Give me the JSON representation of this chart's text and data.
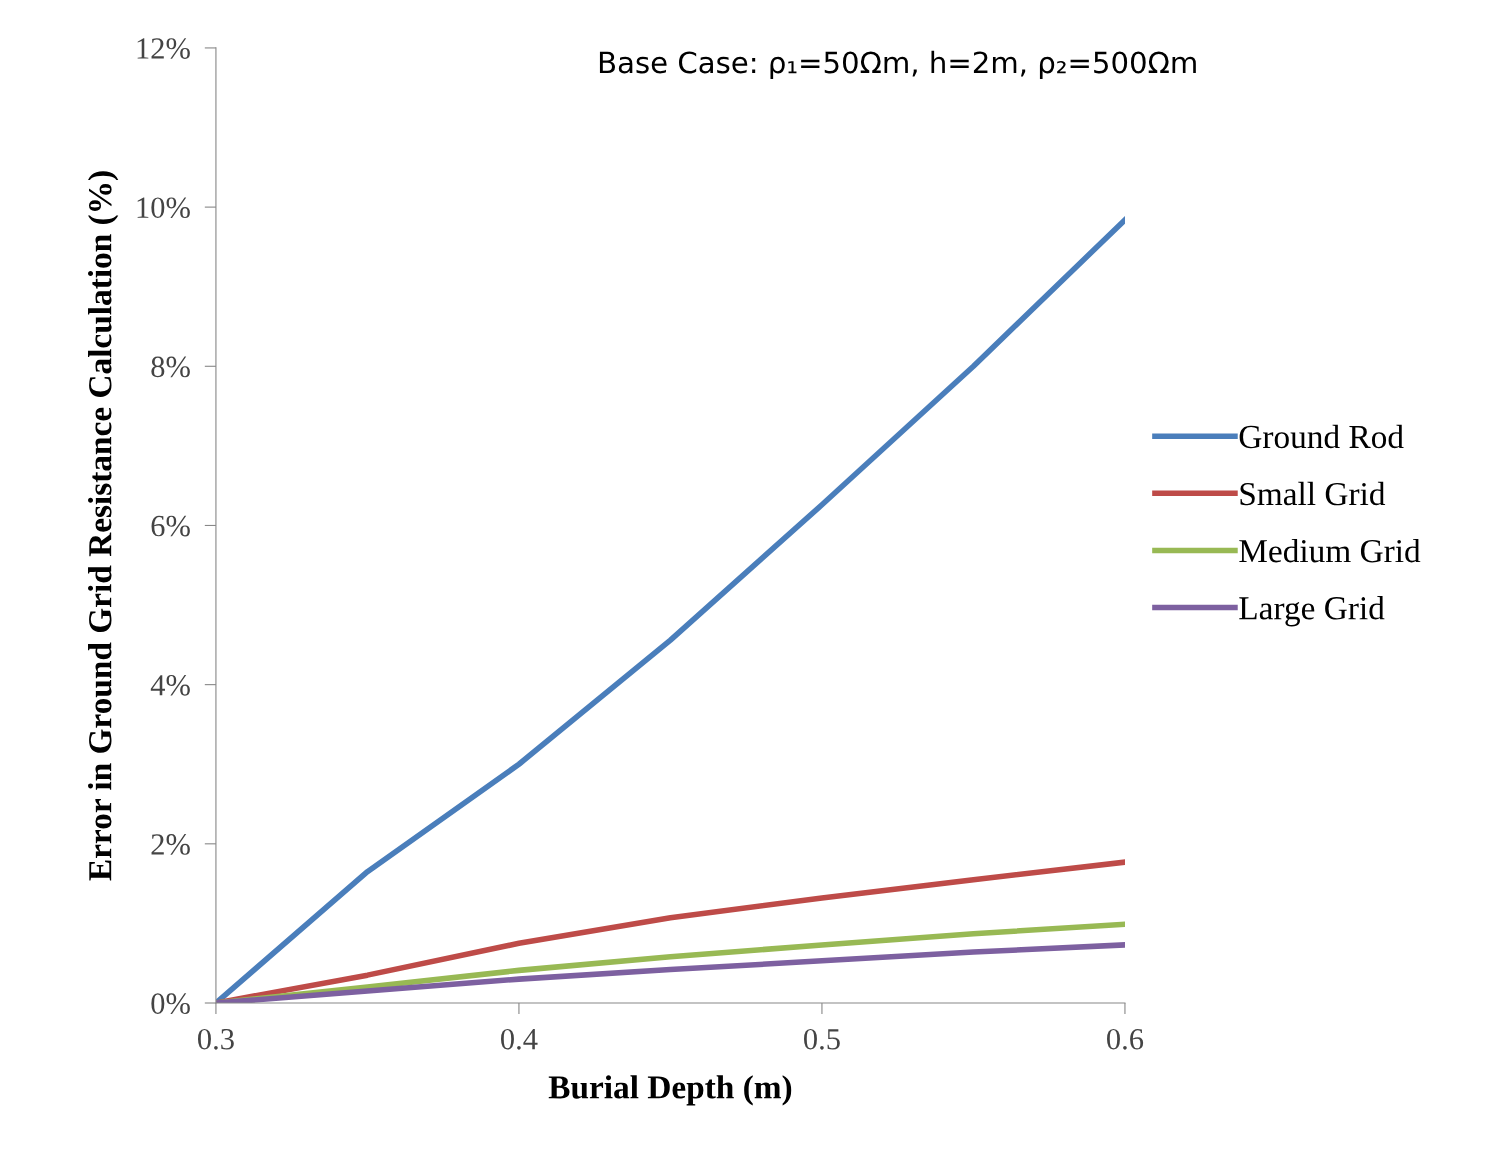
{
  "chart_data": {
    "type": "line",
    "title": "Base Case: ρ₁=50Ωm, h=2m, ρ₂=500Ωm",
    "xlabel": "Burial Depth (m)",
    "ylabel": "Error in Ground Grid Resistance Calculation (%)",
    "x": [
      0.3,
      0.35,
      0.4,
      0.45,
      0.5,
      0.55,
      0.6
    ],
    "series": [
      {
        "name": "Ground Rod",
        "color": "#4a7ebb",
        "values": [
          0,
          1.65,
          3.0,
          4.56,
          6.26,
          8.0,
          9.84
        ]
      },
      {
        "name": "Small Grid",
        "color": "#be4b48",
        "values": [
          0,
          0.35,
          0.75,
          1.07,
          1.32,
          1.55,
          1.77
        ]
      },
      {
        "name": "Medium Grid",
        "color": "#98b954",
        "values": [
          0,
          0.2,
          0.41,
          0.58,
          0.73,
          0.87,
          0.99
        ]
      },
      {
        "name": "Large Grid",
        "color": "#7d60a0",
        "values": [
          0,
          0.15,
          0.3,
          0.42,
          0.53,
          0.64,
          0.73
        ]
      }
    ],
    "xlim": [
      0.3,
      0.6
    ],
    "xticks": [
      0.3,
      0.4,
      0.5,
      0.6
    ],
    "ylim": [
      0,
      12
    ],
    "yticks": [
      {
        "value": 0,
        "label": "0%"
      },
      {
        "value": 2,
        "label": "2%"
      },
      {
        "value": 4,
        "label": "4%"
      },
      {
        "value": 6,
        "label": "6%"
      },
      {
        "value": 8,
        "label": "8%"
      },
      {
        "value": 10,
        "label": "10%"
      },
      {
        "value": 12,
        "label": "12%"
      }
    ],
    "grid": false,
    "legend": "right",
    "marker": "none",
    "line_style": "solid"
  }
}
